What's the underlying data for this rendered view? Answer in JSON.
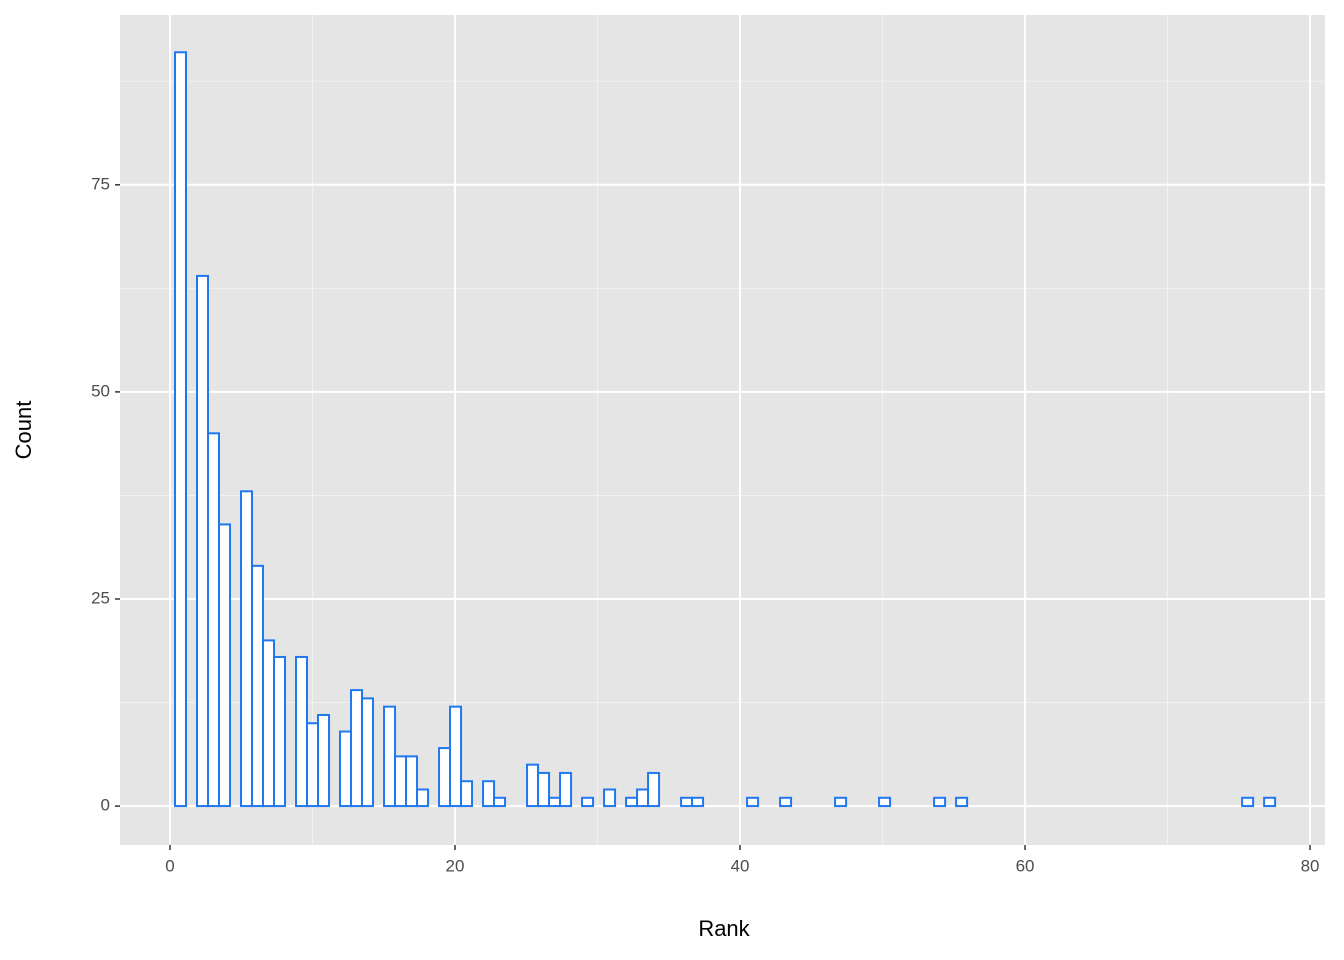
{
  "chart_data": {
    "type": "histogram",
    "x_label": "Rank",
    "y_label": "Count",
    "bins": [
      0.35,
      1.122,
      1.894,
      2.666,
      3.438,
      4.21,
      4.982,
      5.754,
      6.526,
      7.298,
      8.07,
      8.842,
      9.614,
      10.386,
      11.158,
      11.93,
      12.702,
      13.474,
      14.246,
      15.018,
      15.79,
      16.562,
      17.334,
      18.106,
      18.878,
      19.65,
      20.422,
      21.194,
      21.966,
      22.738,
      23.51,
      24.282,
      25.054,
      25.826,
      26.598,
      27.37,
      28.142,
      28.914,
      29.686,
      30.458,
      31.23,
      32.002,
      32.774,
      33.546,
      34.318,
      35.09,
      35.862,
      36.634,
      37.406,
      38.178,
      38.95,
      39.722,
      40.494,
      41.266,
      42.038,
      42.81,
      43.582,
      44.354,
      45.126,
      45.898,
      46.67,
      47.442,
      48.214,
      48.986,
      49.758,
      50.53,
      51.302,
      52.074,
      52.846,
      53.618,
      54.39,
      55.162,
      55.934,
      56.706,
      57.478,
      58.25,
      59.022,
      59.794,
      60.566,
      61.338,
      62.11,
      62.882,
      63.654,
      64.426,
      65.198,
      65.97,
      66.742,
      67.514,
      68.286,
      69.058,
      69.83,
      70.602,
      71.374,
      72.146,
      72.918,
      73.69,
      74.462,
      75.234,
      76.006,
      76.778,
      77.55
    ],
    "values": [
      91,
      0,
      64,
      45,
      34,
      0,
      38,
      29,
      20,
      18,
      0,
      18,
      10,
      11,
      0,
      9,
      14,
      13,
      0,
      12,
      6,
      6,
      2,
      0,
      7,
      12,
      3,
      0,
      3,
      1,
      0,
      0,
      5,
      4,
      1,
      4,
      0,
      1,
      0,
      2,
      0,
      1,
      2,
      4,
      0,
      0,
      1,
      1,
      0,
      0,
      0,
      0,
      1,
      0,
      0,
      1,
      0,
      0,
      0,
      0,
      1,
      0,
      0,
      0,
      1,
      0,
      0,
      0,
      0,
      1,
      0,
      1,
      0,
      0,
      0,
      0,
      0,
      0,
      0,
      0,
      0,
      0,
      0,
      0,
      0,
      0,
      0,
      0,
      0,
      0,
      0,
      0,
      0,
      0,
      0,
      0,
      0,
      1,
      0,
      1
    ],
    "color": "#1f78f0",
    "fill": "#ffffff",
    "xlim": [
      -3.51,
      81.05
    ],
    "ylim": [
      -4.7,
      95.5
    ],
    "xticks": [
      0,
      20,
      40,
      60,
      80
    ],
    "yticks": [
      0,
      25,
      50,
      75
    ],
    "x_minor_grid": [
      10,
      30,
      50,
      70
    ],
    "y_minor_grid": [
      12.5,
      37.5,
      62.5,
      87.5
    ],
    "grid": true
  }
}
